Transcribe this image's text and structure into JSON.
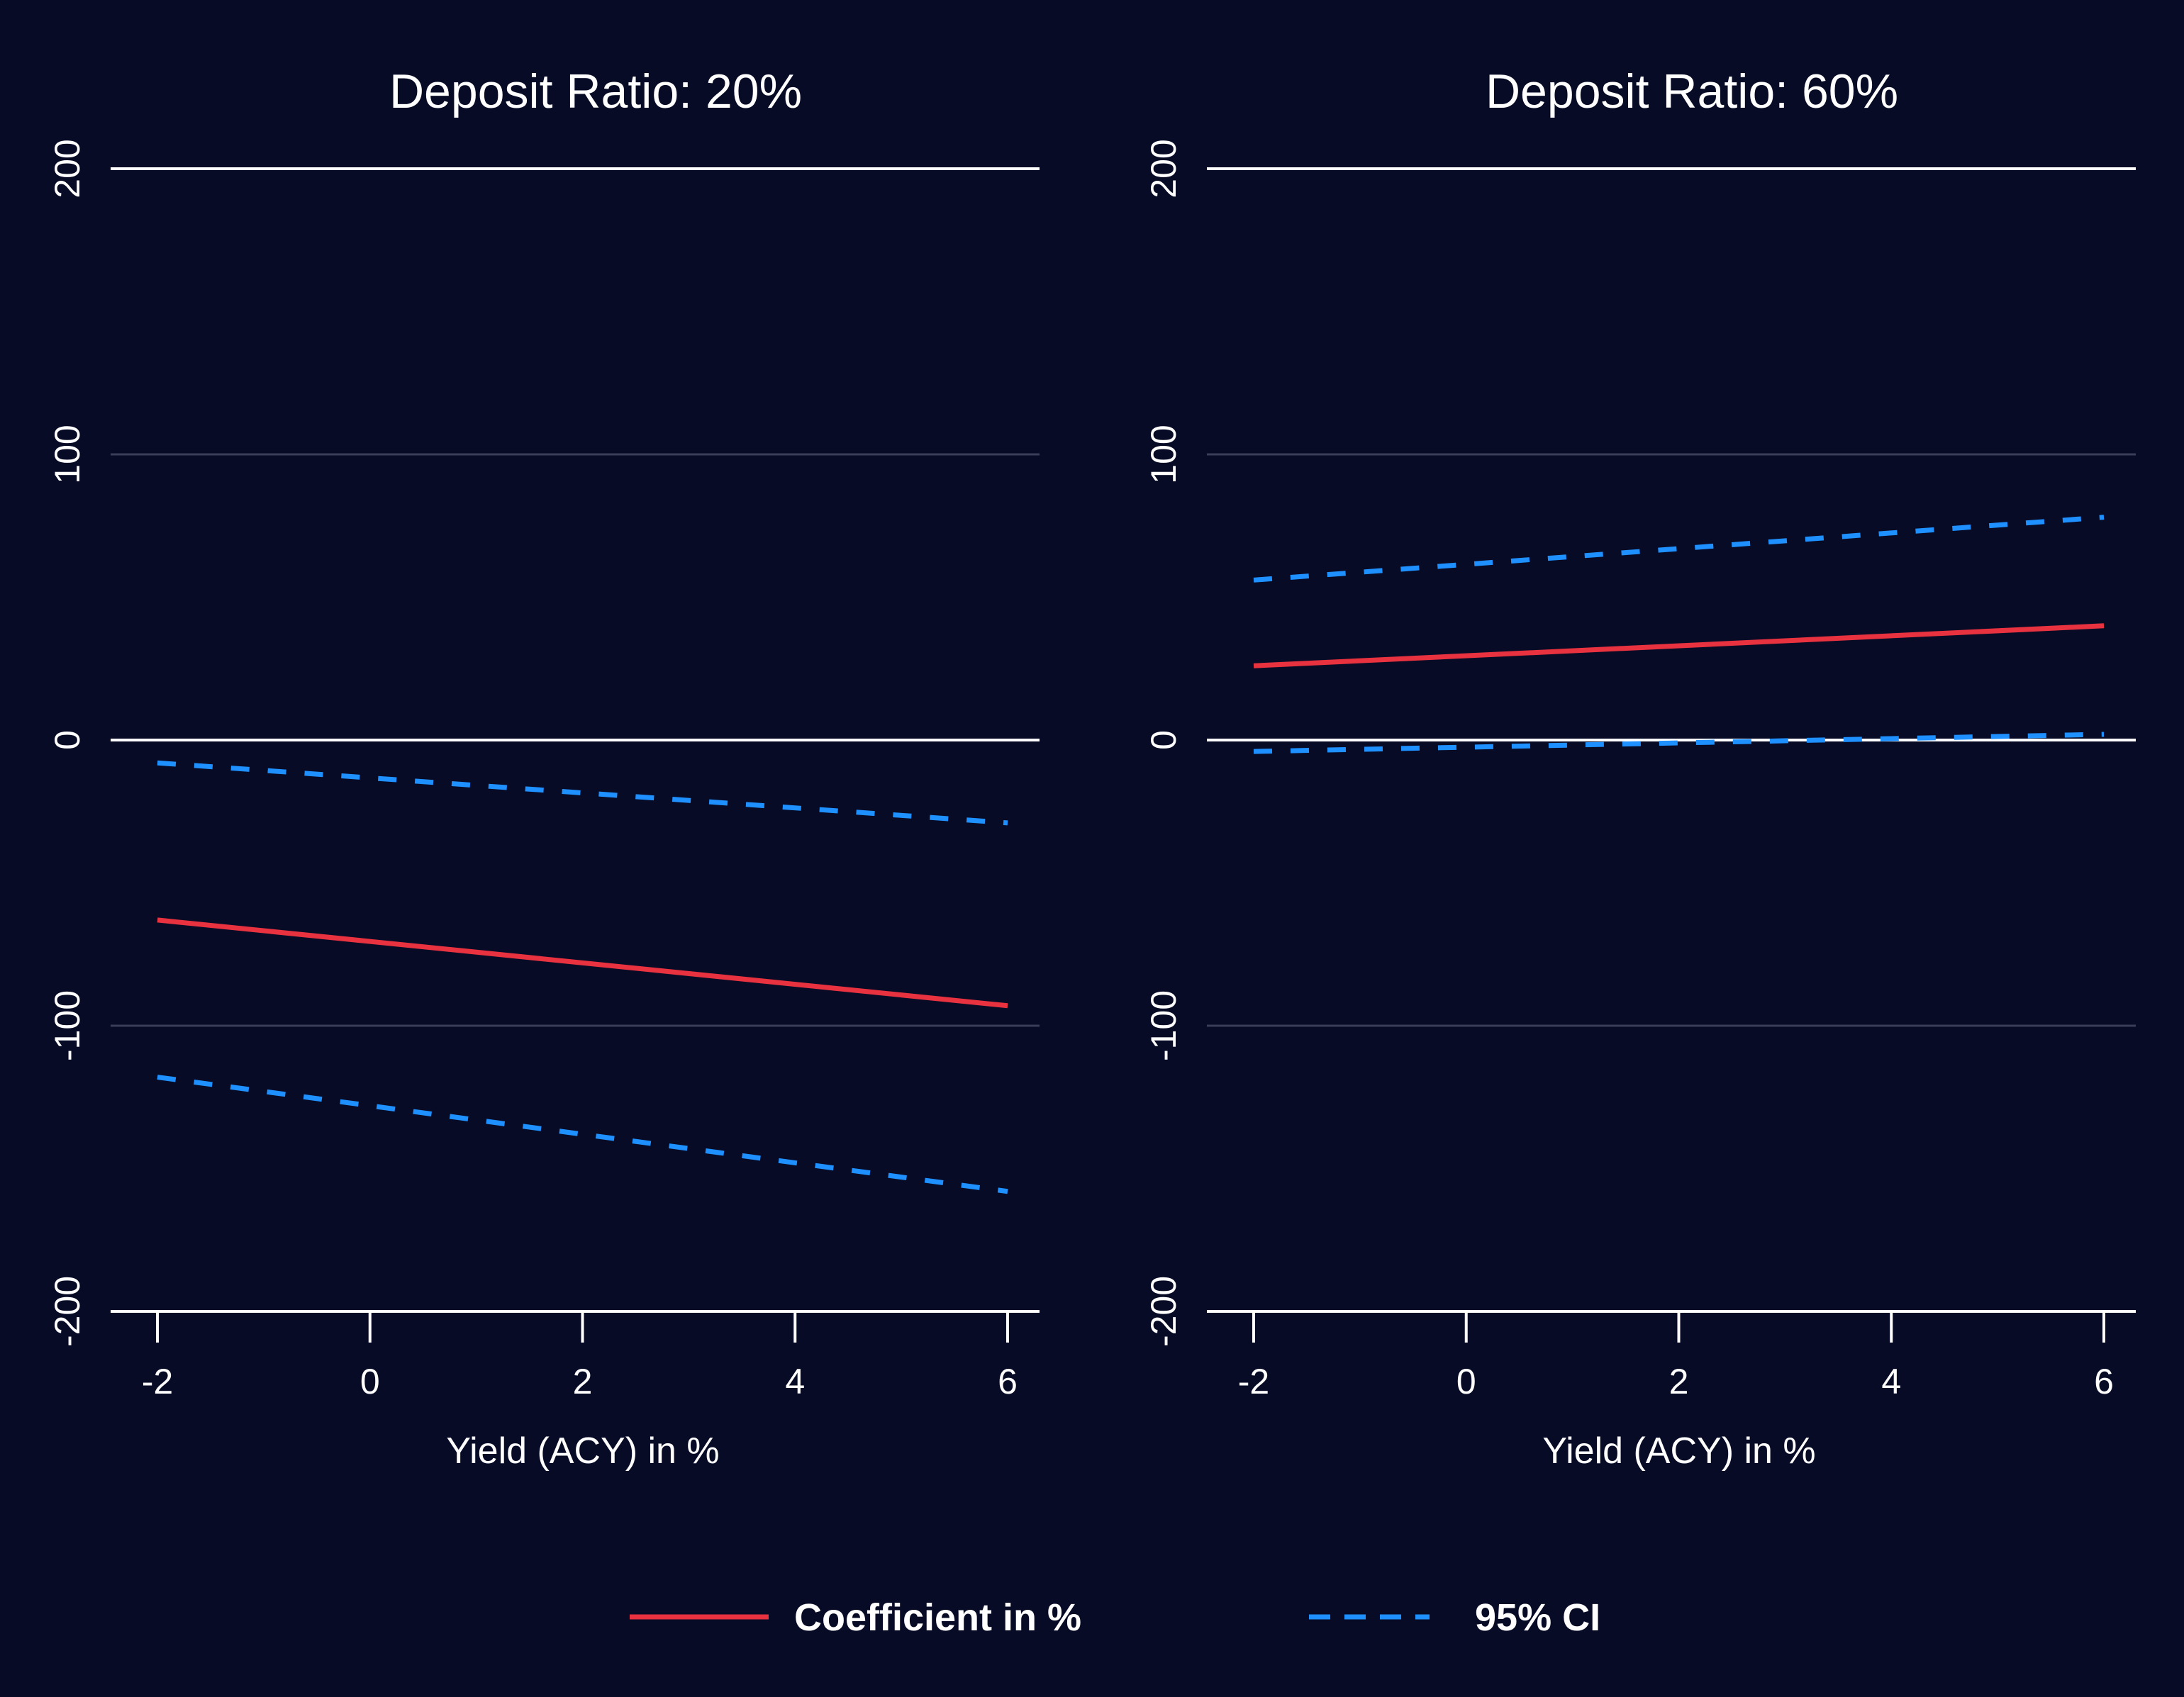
{
  "colors": {
    "background": "#070b26",
    "axis": "#ffffff",
    "gridline": "#3b3e58",
    "coefficient": "#e8323f",
    "ci": "#1e90ff",
    "text": "#ffffff"
  },
  "legend": {
    "items": [
      {
        "label": "Coefficient in %",
        "style": "solid",
        "color": "#e8323f"
      },
      {
        "label": "95% CI",
        "style": "dashed",
        "color": "#1e90ff"
      }
    ],
    "placement": "bottom-center"
  },
  "chart_data": [
    {
      "type": "line",
      "title": "Deposit Ratio: 20%",
      "xlabel": "Yield (ACY) in %",
      "ylabel": "",
      "xlim": [
        -2,
        6
      ],
      "ylim": [
        -200,
        200
      ],
      "xticks": [
        -2,
        0,
        2,
        4,
        6
      ],
      "yticks": [
        -200,
        -100,
        0,
        100,
        200
      ],
      "grid": true,
      "series": [
        {
          "name": "Coefficient in %",
          "style": "solid",
          "x": [
            -2,
            6
          ],
          "y": [
            -63,
            -93
          ]
        },
        {
          "name": "95% CI",
          "style": "dashed",
          "x": [
            -2,
            6
          ],
          "y": [
            -8,
            -29
          ]
        },
        {
          "name": "95% CI",
          "style": "dashed",
          "x": [
            -2,
            6
          ],
          "y": [
            -118,
            -158
          ]
        }
      ]
    },
    {
      "type": "line",
      "title": "Deposit Ratio: 60%",
      "xlabel": "Yield (ACY) in %",
      "ylabel": "",
      "xlim": [
        -2,
        6
      ],
      "ylim": [
        -200,
        200
      ],
      "xticks": [
        -2,
        0,
        2,
        4,
        6
      ],
      "yticks": [
        -200,
        -100,
        0,
        100,
        200
      ],
      "grid": true,
      "series": [
        {
          "name": "Coefficient in %",
          "style": "solid",
          "x": [
            -2,
            6
          ],
          "y": [
            26,
            40
          ]
        },
        {
          "name": "95% CI",
          "style": "dashed",
          "x": [
            -2,
            6
          ],
          "y": [
            56,
            78
          ]
        },
        {
          "name": "95% CI",
          "style": "dashed",
          "x": [
            -2,
            6
          ],
          "y": [
            -4,
            2
          ]
        }
      ]
    }
  ]
}
